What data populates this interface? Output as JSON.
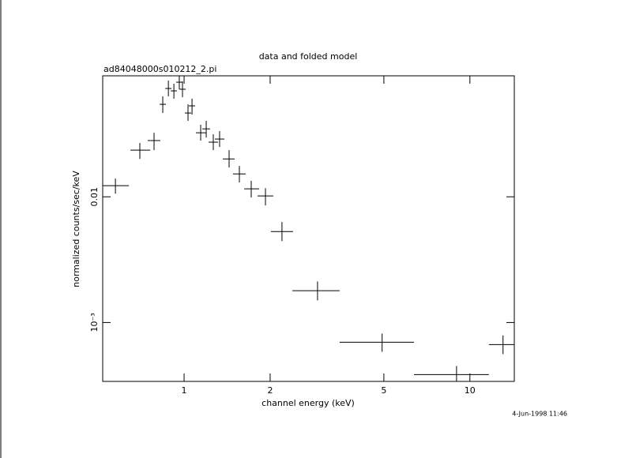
{
  "chart_data": {
    "type": "scatter",
    "title": "data and folded model",
    "subtitle": "ad84048000s010212_2.pi",
    "x_label": "channel energy (keV)",
    "y_label": "normalized counts/sec/keV",
    "timestamp": "4-Jun-1998 11:46",
    "x_scale": "log",
    "y_scale": "log",
    "xlim": [
      0.519,
      14.3
    ],
    "ylim": [
      0.00034,
      0.0917
    ],
    "xticks": [
      1,
      2,
      5,
      10
    ],
    "yticks": [
      {
        "value": 0.001,
        "label": "10⁻³"
      },
      0.01
    ],
    "series": [
      {
        "color": "#000000",
        "x": [
          0.575,
          0.7,
          0.785,
          0.842,
          0.881,
          0.921,
          0.962,
          0.987,
          1.032,
          1.066,
          1.143,
          1.195,
          1.265,
          1.331,
          1.437,
          1.561,
          1.717,
          1.926,
          2.2,
          2.93,
          4.93,
          8.98,
          13.06
        ],
        "x_low": [
          0.519,
          0.649,
          0.746,
          0.821,
          0.859,
          0.898,
          0.938,
          0.962,
          1.006,
          1.039,
          1.1,
          1.158,
          1.218,
          1.281,
          1.366,
          1.483,
          1.622,
          1.806,
          2.012,
          2.392,
          3.5,
          6.37,
          11.65
        ],
        "x_high": [
          0.641,
          0.761,
          0.826,
          0.864,
          0.903,
          0.944,
          0.987,
          1.013,
          1.059,
          1.093,
          1.195,
          1.233,
          1.314,
          1.383,
          1.502,
          1.642,
          1.831,
          2.052,
          2.405,
          3.5,
          6.37,
          11.65,
          14.3
        ],
        "values": [
          0.01225,
          0.0235,
          0.028,
          0.0544,
          0.0727,
          0.0696,
          0.0816,
          0.0717,
          0.0464,
          0.0529,
          0.0323,
          0.0347,
          0.0272,
          0.0288,
          0.02,
          0.0152,
          0.01156,
          0.01015,
          0.00529,
          0.00179,
          0.000697,
          0.000385,
          0.000667
        ],
        "y_low": [
          0.01059,
          0.02,
          0.0235,
          0.0464,
          0.0629,
          0.0603,
          0.0717,
          0.062,
          0.0402,
          0.0451,
          0.028,
          0.0296,
          0.0235,
          0.0249,
          0.0171,
          0.013,
          0.00986,
          0.00853,
          0.00444,
          0.0015,
          0.000585,
          0.000333,
          0.00056
        ],
        "y_high": [
          0.01395,
          0.0268,
          0.0323,
          0.0629,
          0.0841,
          0.0793,
          0.0917,
          0.0828,
          0.0544,
          0.0603,
          0.0374,
          0.0402,
          0.0314,
          0.0333,
          0.0235,
          0.0176,
          0.0134,
          0.0117,
          0.0063,
          0.00212,
          0.000817,
          0.000451,
          0.00079
        ]
      }
    ]
  }
}
